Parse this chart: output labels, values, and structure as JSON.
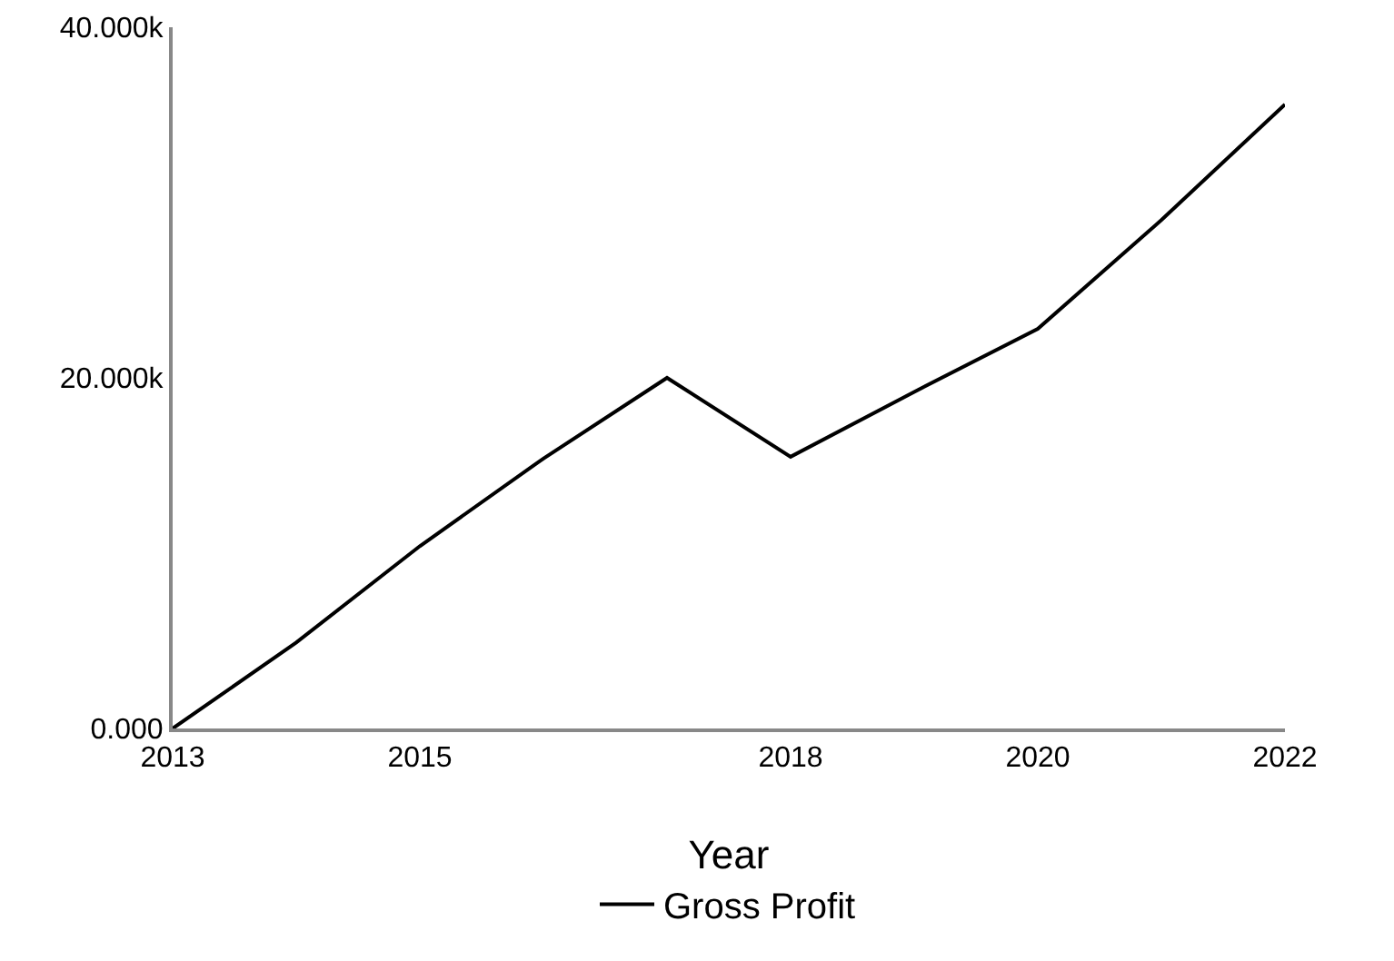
{
  "chart_data": {
    "type": "line",
    "xlabel": "Year",
    "x": [
      2013,
      2014,
      2015,
      2016,
      2017,
      2018,
      2019,
      2020,
      2021,
      2022
    ],
    "series": [
      {
        "name": "Gross Profit",
        "color": "#000000",
        "values": [
          0,
          4900,
          10400,
          15400,
          20000,
          15500,
          19200,
          22800,
          29000,
          35600
        ]
      }
    ],
    "xlim": [
      2013,
      2022
    ],
    "xticks": [
      2013,
      2015,
      2018,
      2020,
      2022
    ],
    "ylim": [
      0,
      40000
    ],
    "yticks": [
      {
        "value": 0,
        "label": "0.000"
      },
      {
        "value": 20000,
        "label": "20.000k"
      },
      {
        "value": 40000,
        "label": "40.000k"
      }
    ],
    "grid": false,
    "legend": "bottom",
    "marker": "none",
    "line_style": "solid"
  }
}
